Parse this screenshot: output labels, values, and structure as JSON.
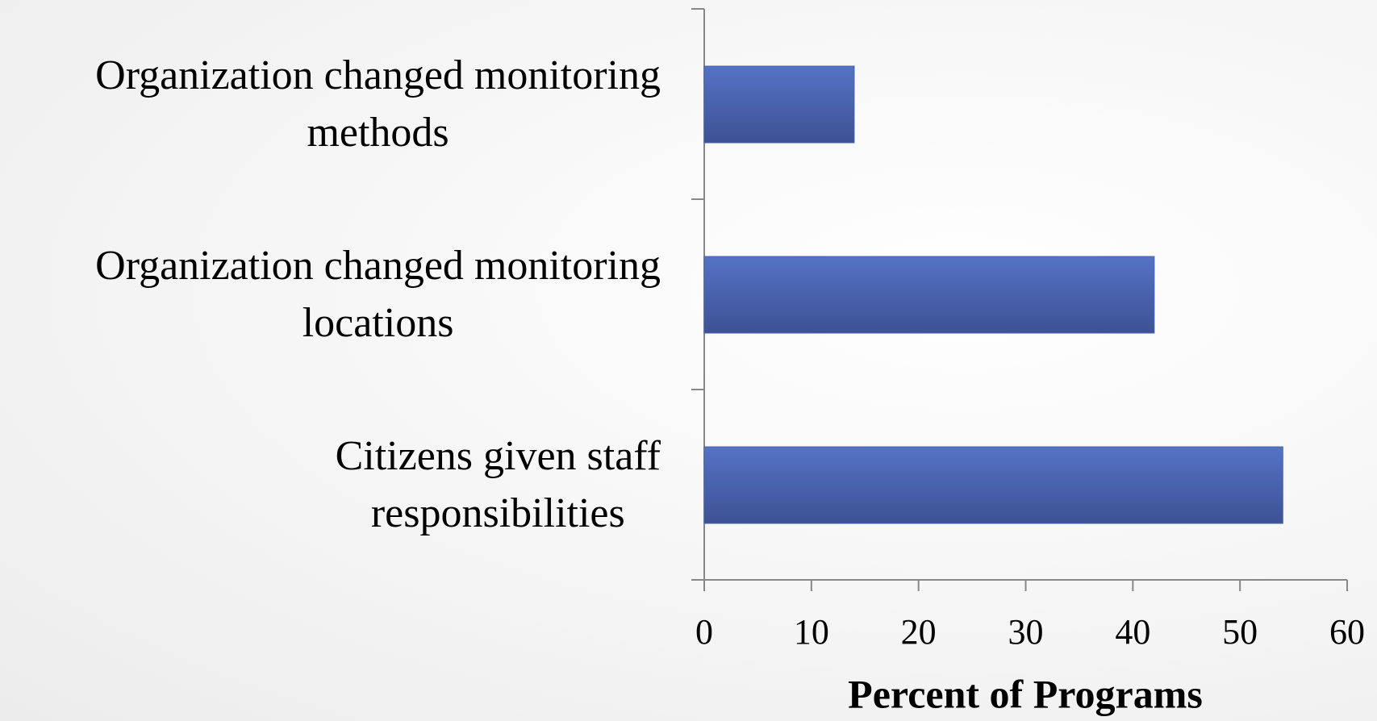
{
  "chart_data": {
    "type": "hbar",
    "categories": [
      "Organization changed monitoring\nmethods",
      "Organization changed monitoring\nlocations",
      "Citizens given staff\nresponsibilities"
    ],
    "values": [
      14,
      42,
      54
    ],
    "color": "#4a63b0",
    "xlabel": "Percent of Programs",
    "xlim": [
      0,
      60
    ],
    "xticks": [
      0,
      10,
      20,
      30,
      40,
      50,
      60
    ]
  }
}
